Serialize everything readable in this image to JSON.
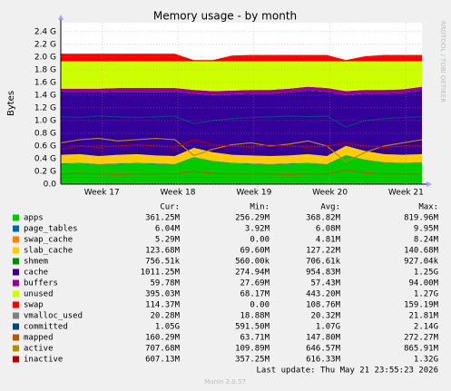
{
  "chart_data": {
    "type": "stacked-area",
    "title": "Memory usage - by month",
    "ylabel": "Bytes",
    "side_text": "RRDTOOL / TOBI OETIKER",
    "x": [
      16.46,
      16.71,
      16.96,
      17.21,
      17.46,
      17.71,
      17.96,
      18.21,
      18.46,
      18.71,
      18.96,
      19.21,
      19.46,
      19.71,
      19.96,
      20.21,
      20.46,
      20.71,
      20.96,
      21.21
    ],
    "xlim": [
      16.46,
      21.21
    ],
    "xticks": [
      {
        "value": 17,
        "label": "Week 17"
      },
      {
        "value": 18,
        "label": "Week 18"
      },
      {
        "value": 19,
        "label": "Week 19"
      },
      {
        "value": 20,
        "label": "Week 20"
      },
      {
        "value": 21,
        "label": "Week 21"
      }
    ],
    "ylim": [
      0,
      2.54
    ],
    "yticks": [
      {
        "value": 0,
        "label": "0.0"
      },
      {
        "value": 0.2,
        "label": "0.2 G"
      },
      {
        "value": 0.4,
        "label": "0.4 G"
      },
      {
        "value": 0.6,
        "label": "0.6 G"
      },
      {
        "value": 0.8,
        "label": "0.8 G"
      },
      {
        "value": 1.0,
        "label": "1.0 G"
      },
      {
        "value": 1.2,
        "label": "1.2 G"
      },
      {
        "value": 1.4,
        "label": "1.4 G"
      },
      {
        "value": 1.6,
        "label": "1.6 G"
      },
      {
        "value": 1.8,
        "label": "1.8 G"
      },
      {
        "value": 2.0,
        "label": "2.0 G"
      },
      {
        "value": 2.2,
        "label": "2.2 G"
      },
      {
        "value": 2.4,
        "label": "2.4 G"
      }
    ],
    "grid": true,
    "series": [
      {
        "name": "apps",
        "color": "#00cc00",
        "type": "area",
        "values": [
          0.32,
          0.33,
          0.31,
          0.32,
          0.33,
          0.32,
          0.31,
          0.42,
          0.36,
          0.33,
          0.32,
          0.31,
          0.32,
          0.33,
          0.31,
          0.45,
          0.38,
          0.34,
          0.33,
          0.34
        ]
      },
      {
        "name": "page_tables",
        "color": "#0066b3",
        "type": "area",
        "values": [
          0.006,
          0.006,
          0.006,
          0.006,
          0.006,
          0.006,
          0.006,
          0.006,
          0.006,
          0.006,
          0.006,
          0.006,
          0.006,
          0.006,
          0.006,
          0.006,
          0.006,
          0.006,
          0.006,
          0.006
        ]
      },
      {
        "name": "swap_cache",
        "color": "#ff8000",
        "type": "area",
        "values": [
          0.005,
          0.005,
          0.005,
          0.005,
          0.005,
          0.005,
          0.005,
          0.005,
          0.005,
          0.005,
          0.005,
          0.005,
          0.005,
          0.005,
          0.005,
          0.005,
          0.005,
          0.005,
          0.005,
          0.005
        ]
      },
      {
        "name": "slab_cache",
        "color": "#ffcc00",
        "type": "area",
        "values": [
          0.13,
          0.13,
          0.12,
          0.13,
          0.13,
          0.12,
          0.12,
          0.14,
          0.13,
          0.12,
          0.12,
          0.12,
          0.12,
          0.13,
          0.12,
          0.14,
          0.13,
          0.12,
          0.12,
          0.12
        ]
      },
      {
        "name": "shmem",
        "color": "#008f00",
        "type": "area",
        "values": [
          0.001,
          0.001,
          0.001,
          0.001,
          0.001,
          0.001,
          0.001,
          0.001,
          0.001,
          0.001,
          0.001,
          0.001,
          0.001,
          0.001,
          0.001,
          0.001,
          0.001,
          0.001,
          0.001,
          0.001
        ]
      },
      {
        "name": "cache",
        "color": "#330099",
        "type": "area",
        "values": [
          0.98,
          0.97,
          1.0,
          0.99,
          0.98,
          1.0,
          1.01,
          0.85,
          0.9,
          0.95,
          0.97,
          0.98,
          0.99,
          1.0,
          1.01,
          0.8,
          0.9,
          0.95,
          0.97,
          1.0
        ]
      },
      {
        "name": "buffers",
        "color": "#990099",
        "type": "area",
        "values": [
          0.06,
          0.06,
          0.06,
          0.06,
          0.06,
          0.06,
          0.06,
          0.06,
          0.06,
          0.06,
          0.06,
          0.06,
          0.06,
          0.06,
          0.06,
          0.06,
          0.06,
          0.06,
          0.06,
          0.06
        ]
      },
      {
        "name": "unused",
        "color": "#ccff00",
        "type": "area",
        "values": [
          0.43,
          0.43,
          0.43,
          0.42,
          0.42,
          0.42,
          0.42,
          0.45,
          0.47,
          0.46,
          0.45,
          0.45,
          0.43,
          0.4,
          0.42,
          0.47,
          0.45,
          0.45,
          0.44,
          0.4
        ]
      },
      {
        "name": "swap",
        "color": "#ff0000",
        "type": "area",
        "values": [
          0.12,
          0.12,
          0.12,
          0.12,
          0.12,
          0.12,
          0.12,
          0.02,
          0.02,
          0.09,
          0.1,
          0.1,
          0.1,
          0.1,
          0.1,
          0.02,
          0.08,
          0.1,
          0.1,
          0.1
        ]
      },
      {
        "name": "vmalloc_used",
        "color": "#808080",
        "type": "line",
        "values": [
          0.02,
          0.02,
          0.02,
          0.02,
          0.02,
          0.02,
          0.02,
          0.02,
          0.02,
          0.02,
          0.02,
          0.02,
          0.02,
          0.02,
          0.02,
          0.02,
          0.02,
          0.02,
          0.02,
          0.02
        ]
      },
      {
        "name": "committed",
        "color": "#00487d",
        "type": "line",
        "values": [
          1.06,
          1.05,
          1.07,
          1.06,
          1.05,
          1.06,
          1.07,
          0.95,
          1.0,
          1.03,
          1.05,
          1.06,
          1.07,
          1.06,
          1.07,
          0.9,
          1.0,
          1.03,
          1.05,
          1.06
        ]
      },
      {
        "name": "mapped",
        "color": "#b35a00",
        "type": "line",
        "values": [
          0.16,
          0.17,
          0.16,
          0.15,
          0.16,
          0.16,
          0.16,
          0.2,
          0.17,
          0.16,
          0.16,
          0.16,
          0.15,
          0.16,
          0.16,
          0.22,
          0.18,
          0.16,
          0.16,
          0.16
        ]
      },
      {
        "name": "active",
        "color": "#b38f00",
        "type": "line",
        "values": [
          0.65,
          0.7,
          0.72,
          0.68,
          0.7,
          0.72,
          0.7,
          0.45,
          0.55,
          0.62,
          0.65,
          0.6,
          0.63,
          0.68,
          0.6,
          0.35,
          0.5,
          0.6,
          0.65,
          0.7
        ]
      },
      {
        "name": "inactive",
        "color": "#b30000",
        "type": "line",
        "values": [
          0.55,
          0.6,
          0.58,
          0.6,
          0.62,
          0.6,
          0.58,
          0.7,
          0.62,
          0.6,
          0.58,
          0.62,
          0.6,
          0.58,
          0.6,
          0.65,
          0.6,
          0.58,
          0.6,
          0.6
        ]
      }
    ],
    "stat_headers": [
      "Cur:",
      "Min:",
      "Avg:",
      "Max:"
    ],
    "legend_stats": [
      [
        "361.25M",
        "256.29M",
        "368.82M",
        "819.96M"
      ],
      [
        "6.04M",
        "3.92M",
        "6.08M",
        "9.95M"
      ],
      [
        "5.29M",
        "0.00",
        "4.81M",
        "8.24M"
      ],
      [
        "123.68M",
        "69.60M",
        "127.22M",
        "140.68M"
      ],
      [
        "756.51k",
        "560.00k",
        "706.61k",
        "927.04k"
      ],
      [
        "1011.25M",
        "274.94M",
        "954.83M",
        "1.25G"
      ],
      [
        "59.78M",
        "27.69M",
        "57.43M",
        "94.00M"
      ],
      [
        "395.03M",
        "68.17M",
        "443.20M",
        "1.27G"
      ],
      [
        "114.37M",
        "0.00",
        "108.76M",
        "159.19M"
      ],
      [
        "20.28M",
        "18.88M",
        "20.32M",
        "21.81M"
      ],
      [
        "1.05G",
        "591.50M",
        "1.07G",
        "2.14G"
      ],
      [
        "160.29M",
        "63.71M",
        "147.80M",
        "272.27M"
      ],
      [
        "707.68M",
        "109.89M",
        "646.57M",
        "865.91M"
      ],
      [
        "607.13M",
        "357.25M",
        "616.33M",
        "1.32G"
      ]
    ],
    "last_update": "Last update: Thu May 21 23:55:23 2026",
    "footer": "Munin 2.0.57"
  }
}
